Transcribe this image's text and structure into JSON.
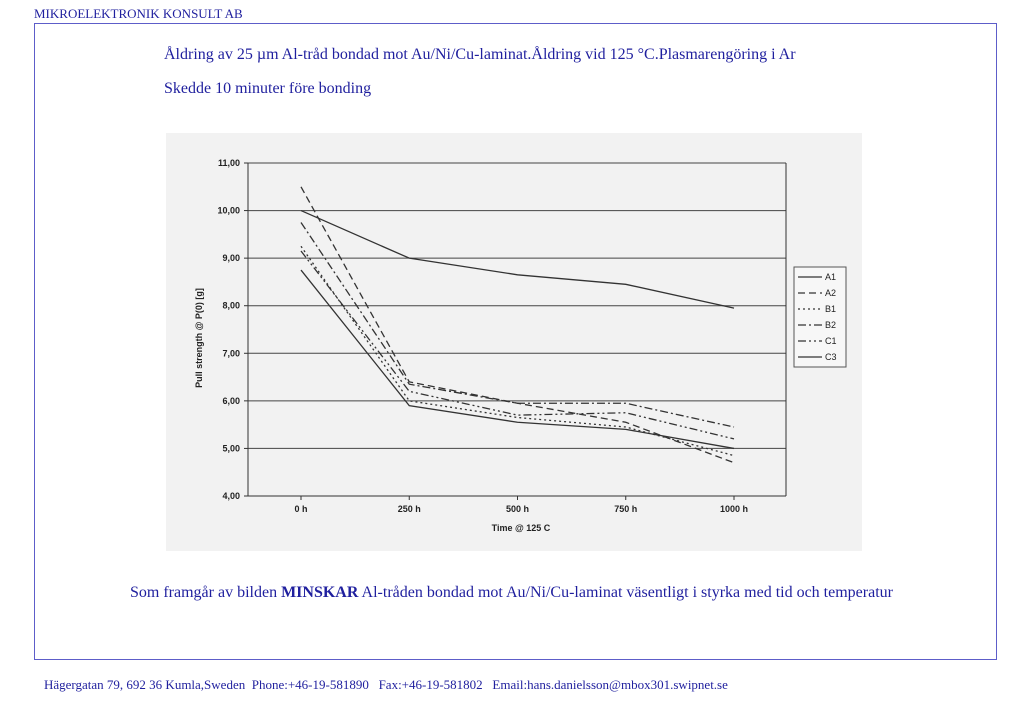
{
  "header": {
    "company": "MIKROELEKTRONIK KONSULT AB"
  },
  "title": {
    "line1": "Åldring av 25 µm Al-tråd bondad mot Au/Ni/Cu-laminat.Åldring vid 125 °C.Plasmarengöring i Ar",
    "line2": "Skedde 10 minuter före bonding"
  },
  "chart_data": {
    "type": "line",
    "title": "",
    "xlabel": "Time @ 125 C",
    "ylabel": "Pull strength @ P(0) [g]",
    "categories": [
      "0 h",
      "250 h",
      "500 h",
      "750 h",
      "1000 h"
    ],
    "ylim": [
      4.0,
      11.0
    ],
    "yticks": [
      "4,00",
      "5,00",
      "6,00",
      "7,00",
      "8,00",
      "9,00",
      "10,00",
      "11,00"
    ],
    "grid": true,
    "legend_position": "right",
    "series": [
      {
        "name": "A1",
        "values": [
          8.75,
          5.9,
          5.55,
          5.4,
          5.0
        ],
        "dash": ""
      },
      {
        "name": "A2",
        "values": [
          10.5,
          6.4,
          5.95,
          5.55,
          4.7
        ],
        "dash": "7,4"
      },
      {
        "name": "B1",
        "values": [
          9.25,
          6.0,
          5.65,
          5.45,
          4.85
        ],
        "dash": "2,3"
      },
      {
        "name": "B2",
        "values": [
          9.75,
          6.35,
          5.95,
          5.95,
          5.45
        ],
        "dash": "8,3,2,3"
      },
      {
        "name": "C1",
        "values": [
          9.15,
          6.2,
          5.7,
          5.75,
          5.2
        ],
        "dash": "8,3,2,3,2,3"
      },
      {
        "name": "C3",
        "values": [
          10.0,
          9.0,
          8.65,
          8.45,
          7.95
        ],
        "dash": ""
      }
    ]
  },
  "conclusion": {
    "prefix": "Som framgår av bilden ",
    "emphasis": "MINSKAR",
    "suffix": " Al-tråden bondad mot Au/Ni/Cu-laminat väsentligt i styrka med tid och temperatur"
  },
  "footer": {
    "text": "Hägergatan 79, 692 36 Kumla,Sweden  Phone:+46-19-581890   Fax:+46-19-581802   Email:hans.danielsson@mbox301.swipnet.se"
  }
}
